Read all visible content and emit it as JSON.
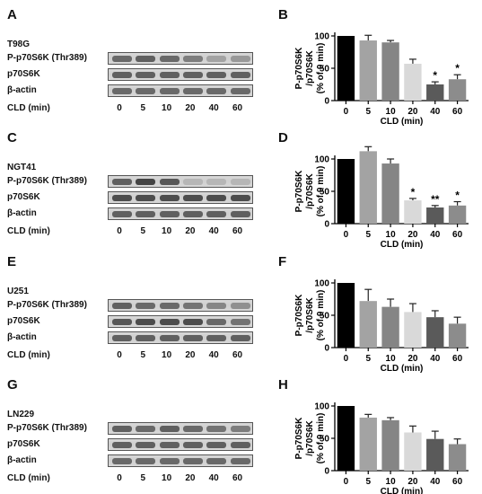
{
  "blot_rows": [
    "P-p70S6K (Thr389)",
    "p70S6K",
    "β-actin"
  ],
  "x_axis_row_label": "CLD (min)",
  "lanes": [
    "0",
    "5",
    "10",
    "20",
    "40",
    "60"
  ],
  "panels": [
    {
      "left_letter": "A",
      "right_letter": "B",
      "cell_line": "T98G",
      "intensities": [
        [
          0.55,
          0.6,
          0.55,
          0.45,
          0.25,
          0.3
        ],
        [
          0.6,
          0.6,
          0.6,
          0.6,
          0.6,
          0.6
        ],
        [
          0.55,
          0.55,
          0.55,
          0.55,
          0.55,
          0.55
        ]
      ]
    },
    {
      "left_letter": "C",
      "right_letter": "D",
      "cell_line": "NGT41",
      "intensities": [
        [
          0.6,
          0.75,
          0.65,
          0.15,
          0.15,
          0.15
        ],
        [
          0.7,
          0.7,
          0.7,
          0.7,
          0.7,
          0.7
        ],
        [
          0.6,
          0.6,
          0.6,
          0.6,
          0.6,
          0.6
        ]
      ]
    },
    {
      "left_letter": "E",
      "right_letter": "F",
      "cell_line": "U251",
      "intensities": [
        [
          0.6,
          0.55,
          0.55,
          0.5,
          0.4,
          0.35
        ],
        [
          0.65,
          0.7,
          0.7,
          0.7,
          0.55,
          0.5
        ],
        [
          0.6,
          0.6,
          0.6,
          0.6,
          0.6,
          0.6
        ]
      ]
    },
    {
      "left_letter": "G",
      "right_letter": "H",
      "cell_line": "LN229",
      "intensities": [
        [
          0.6,
          0.55,
          0.6,
          0.55,
          0.5,
          0.45
        ],
        [
          0.6,
          0.6,
          0.6,
          0.6,
          0.6,
          0.6
        ],
        [
          0.55,
          0.55,
          0.55,
          0.55,
          0.55,
          0.55
        ]
      ]
    }
  ],
  "bar_colors": [
    "#000000",
    "#a3a3a3",
    "#858585",
    "#d9d9d9",
    "#5a5a5a",
    "#8c8c8c"
  ],
  "chart_data": [
    {
      "type": "bar",
      "categories": [
        "0",
        "5",
        "10",
        "20",
        "40",
        "60"
      ],
      "values": [
        100,
        93,
        90,
        57,
        25,
        33
      ],
      "errors": [
        0,
        8,
        3,
        7,
        4,
        7
      ],
      "annotations": [
        "",
        "",
        "",
        "",
        "*",
        "*"
      ],
      "ylabel": "P-p70S6K /p70S6K (% of 0 min)",
      "xlabel": "CLD (min)",
      "ylim": [
        0,
        100
      ],
      "yticks": [
        0,
        50,
        100
      ]
    },
    {
      "type": "bar",
      "categories": [
        "0",
        "5",
        "10",
        "20",
        "40",
        "60"
      ],
      "values": [
        100,
        112,
        93,
        36,
        25,
        28
      ],
      "errors": [
        0,
        7,
        7,
        3,
        3,
        6
      ],
      "annotations": [
        "",
        "",
        "",
        "*",
        "**",
        "*"
      ],
      "ylabel": "P-p70S6K /p70S6K (% of 0 min)",
      "xlabel": "CLD (min)",
      "ylim": [
        0,
        100
      ],
      "yticks": [
        0,
        50,
        100
      ]
    },
    {
      "type": "bar",
      "categories": [
        "0",
        "5",
        "10",
        "20",
        "40",
        "60"
      ],
      "values": [
        100,
        72,
        63,
        55,
        47,
        37
      ],
      "errors": [
        0,
        18,
        12,
        13,
        10,
        10
      ],
      "annotations": [
        "",
        "",
        "",
        "",
        "",
        ""
      ],
      "ylabel": "P-p70S6K /p70S6K (% of 0 min)",
      "xlabel": "CLD (min)",
      "ylim": [
        0,
        100
      ],
      "yticks": [
        0,
        50,
        100
      ]
    },
    {
      "type": "bar",
      "categories": [
        "0",
        "5",
        "10",
        "20",
        "40",
        "60"
      ],
      "values": [
        100,
        82,
        78,
        59,
        49,
        41
      ],
      "errors": [
        0,
        5,
        4,
        10,
        12,
        8
      ],
      "annotations": [
        "",
        "",
        "",
        "",
        "",
        ""
      ],
      "ylabel": "P-p70S6K /p70S6K (% of 0 min)",
      "xlabel": "CLD (min)",
      "ylim": [
        0,
        100
      ],
      "yticks": [
        0,
        50,
        100
      ]
    }
  ]
}
